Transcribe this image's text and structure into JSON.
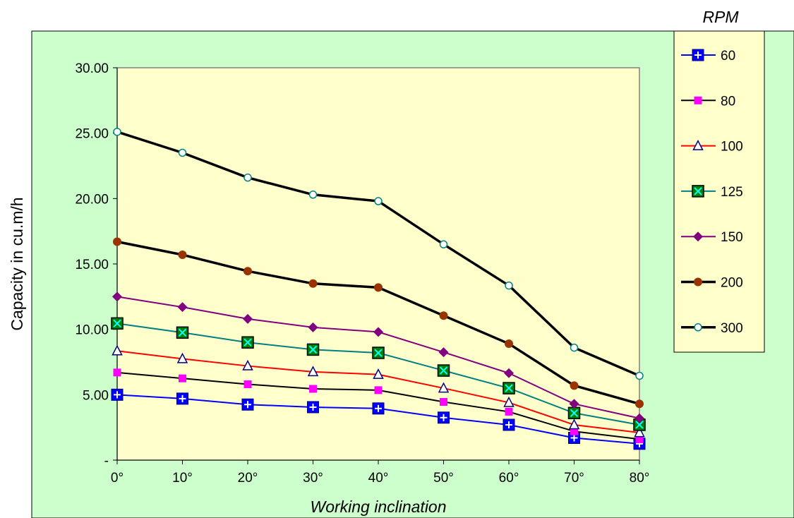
{
  "chart_data": {
    "type": "line",
    "title": "",
    "xlabel": "Working inclination",
    "ylabel": "Capacity in cu.m/h",
    "categories": [
      "0°",
      "10°",
      "20°",
      "30°",
      "40°",
      "50°",
      "60°",
      "70°",
      "80°"
    ],
    "ylim": [
      0,
      30
    ],
    "y_ticks": [
      0,
      5,
      10,
      15,
      20,
      25,
      30
    ],
    "y_tick_labels": [
      "-",
      "5.00",
      "10.00",
      "15.00",
      "20.00",
      "25.00",
      "30.00"
    ],
    "grid": false,
    "legend_position": "right",
    "legend_title": "RPM",
    "series": [
      {
        "name": "60",
        "values": [
          5.0,
          4.7,
          4.25,
          4.05,
          3.95,
          3.25,
          2.7,
          1.7,
          1.25
        ],
        "color": "#0000ff",
        "marker": "square-plus",
        "line_width": 2
      },
      {
        "name": "80",
        "values": [
          6.7,
          6.25,
          5.8,
          5.45,
          5.35,
          4.45,
          3.7,
          2.2,
          1.6
        ],
        "color": "#000000",
        "marker": "square",
        "marker_color": "#ff00ff",
        "line_width": 2
      },
      {
        "name": "100",
        "values": [
          8.35,
          7.75,
          7.2,
          6.75,
          6.55,
          5.5,
          4.4,
          2.7,
          2.1
        ],
        "color": "#ff0000",
        "marker": "triangle",
        "marker_color": "#000080",
        "line_width": 2
      },
      {
        "name": "125",
        "values": [
          10.45,
          9.75,
          9.0,
          8.45,
          8.2,
          6.85,
          5.5,
          3.6,
          2.7
        ],
        "color": "#008080",
        "marker": "square-x",
        "marker_color": "#008000",
        "line_width": 2
      },
      {
        "name": "150",
        "values": [
          12.5,
          11.7,
          10.8,
          10.15,
          9.8,
          8.25,
          6.65,
          4.3,
          3.2
        ],
        "color": "#800080",
        "marker": "diamond",
        "marker_color": "#800080",
        "line_width": 2
      },
      {
        "name": "200",
        "values": [
          16.7,
          15.7,
          14.45,
          13.5,
          13.2,
          11.05,
          8.9,
          5.7,
          4.3
        ],
        "color": "#000000",
        "marker": "circle",
        "marker_color": "#993300",
        "line_width": 3.5
      },
      {
        "name": "300",
        "values": [
          25.1,
          23.5,
          21.6,
          20.3,
          19.8,
          16.5,
          13.35,
          8.6,
          6.45
        ],
        "color": "#000000",
        "marker": "circle-open",
        "marker_color": "#008080",
        "line_width": 3.5
      }
    ]
  },
  "colors": {
    "page_background": "#ffffff",
    "chart_area": "#ccffcc",
    "plot_area": "#ffffcc",
    "legend_background": "#ffffcc"
  }
}
